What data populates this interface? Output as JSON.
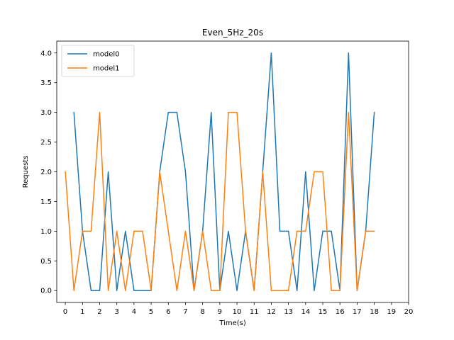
{
  "chart_data": {
    "type": "line",
    "title": "Even_5Hz_20s",
    "xlabel": "Time(s)",
    "ylabel": "Requests",
    "xlim": [
      -0.5,
      20.0
    ],
    "ylim": [
      -0.2,
      4.2
    ],
    "xticks": [
      0,
      1,
      2,
      3,
      4,
      5,
      6,
      7,
      8,
      9,
      10,
      11,
      12,
      13,
      14,
      15,
      16,
      17,
      18,
      19,
      20
    ],
    "yticks": [
      0.0,
      0.5,
      1.0,
      1.5,
      2.0,
      2.5,
      3.0,
      3.5,
      4.0
    ],
    "ytick_labels": [
      "0.0",
      "0.5",
      "1.0",
      "1.5",
      "2.0",
      "2.5",
      "3.0",
      "3.5",
      "4.0"
    ],
    "grid": false,
    "legend_position": "top-left",
    "series": [
      {
        "name": "model0",
        "color": "#1f77b4",
        "x": [
          0.5,
          1.0,
          1.5,
          2.0,
          2.5,
          3.0,
          3.5,
          4.0,
          4.5,
          5.0,
          5.5,
          6.0,
          6.5,
          7.0,
          7.5,
          8.0,
          8.5,
          9.0,
          9.5,
          10.0,
          10.5,
          11.0,
          11.5,
          12.0,
          12.5,
          13.0,
          13.5,
          14.0,
          14.5,
          15.0,
          15.5,
          16.0,
          16.5,
          17.0,
          17.5,
          18.0
        ],
        "values": [
          3,
          1,
          0,
          0,
          2,
          0,
          1,
          0,
          0,
          0,
          2,
          3,
          3,
          2,
          0,
          1,
          3,
          0,
          1,
          0,
          1,
          0,
          2,
          4,
          1,
          1,
          0,
          2,
          0,
          1,
          1,
          0,
          4,
          0,
          1,
          3
        ]
      },
      {
        "name": "model1",
        "color": "#ff7f0e",
        "x": [
          0.0,
          0.5,
          1.0,
          1.5,
          2.0,
          2.5,
          3.0,
          3.5,
          4.0,
          4.5,
          5.0,
          5.5,
          6.0,
          6.5,
          7.0,
          7.5,
          8.0,
          8.5,
          9.0,
          9.5,
          10.0,
          10.5,
          11.0,
          11.5,
          12.0,
          12.5,
          13.0,
          13.5,
          14.0,
          14.5,
          15.0,
          15.5,
          16.0,
          16.5,
          17.0,
          17.5,
          18.0
        ],
        "values": [
          2,
          0,
          1,
          1,
          3,
          0,
          1,
          0,
          1,
          1,
          0,
          2,
          1,
          0,
          1,
          0,
          1,
          0,
          0,
          3,
          3,
          1,
          0,
          2,
          0,
          0,
          0,
          1,
          1,
          2,
          2,
          0,
          0,
          3,
          0,
          1,
          1
        ]
      }
    ]
  }
}
